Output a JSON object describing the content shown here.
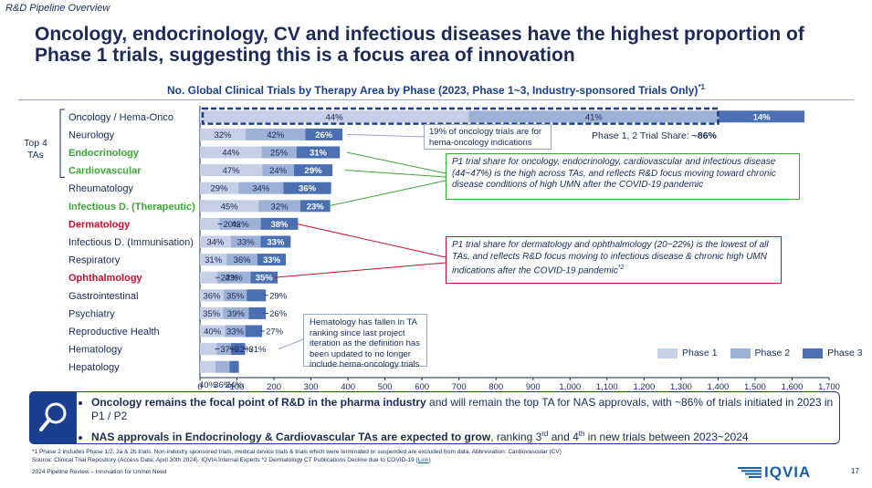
{
  "section_label": "R&D Pipeline Overview",
  "headline": "Oncology, endocrinology, CV and infectious diseases have the highest proportion of Phase 1 trials, suggesting this is a focus area of innovation",
  "chart_title": "No. Global Clinical Trials by Therapy Area by Phase (2023, Phase 1~3, Industry-sponsored Trials Only)",
  "chart_title_sup": "*1",
  "top4_label": "Top 4 TAs",
  "share_note_prefix": "Phase 1, 2 Trial Share: ",
  "share_note_value": "~86%",
  "callouts": {
    "oncology": "19% of oncology trials are for hema-oncology indications",
    "green": "P1 trial share for oncology, endocrinology, cardiovascular and infectious disease (44~47%) is the high across TAs, and reflects R&D focus moving toward chronic disease conditions of high UMN after the COVID-19 pandemic",
    "red": "P1 trial share for dermatology and ophthalmology (20~22%) is the lowest of all TAs, and reflects R&D focus moving to infectious disease & chronic high UMN indications after the COVID-19 pandemic",
    "red_sup": "*2",
    "hematology": "Hematology has fallen in TA ranking since last project iteration as the definition has been updated to no longer include hema-oncology trials"
  },
  "legend": [
    "Phase 1",
    "Phase 2",
    "Phase 3"
  ],
  "colors": {
    "phase1": "#c5cfe6",
    "phase2": "#9db0d6",
    "phase3": "#4a6fb3",
    "navy": "#1b2a59",
    "green": "#3aa935",
    "red": "#c8102e",
    "highlight": "#1b3f8f"
  },
  "chart_data": {
    "type": "bar",
    "orientation": "horizontal",
    "stacked": true,
    "xlim": [
      0,
      1700
    ],
    "xticks": [
      "0",
      "100",
      "200",
      "300",
      "400",
      "500",
      "600",
      "700",
      "800",
      "900",
      "1,000",
      "1,100",
      "1,200",
      "1,300",
      "1,400",
      "1,500",
      "1,600",
      "1,700"
    ],
    "categories": [
      "Oncology / Hema-Onco",
      "Neurology",
      "Endocrinology",
      "Cardiovascular",
      "Rheumatology",
      "Infectious D. (Therapeutic)",
      "Dermatology",
      "Infectious D. (Immunisation)",
      "Respiratory",
      "Ophthalmology",
      "Gastrointestinal",
      "Psychiatry",
      "Reproductive Health",
      "Hematology",
      "Hepatology"
    ],
    "category_colors": [
      "#1b2a59",
      "#1b2a59",
      "#3aa935",
      "#3aa935",
      "#1b2a59",
      "#3aa935",
      "#c8102e",
      "#1b2a59",
      "#1b2a59",
      "#c8102e",
      "#1b2a59",
      "#1b2a59",
      "#1b2a59",
      "#1b2a59",
      "#1b2a59"
    ],
    "category_bold": [
      false,
      false,
      true,
      true,
      false,
      true,
      true,
      false,
      false,
      true,
      false,
      false,
      false,
      false,
      false
    ],
    "totals": [
      1650,
      385,
      378,
      358,
      358,
      352,
      265,
      245,
      232,
      210,
      178,
      178,
      168,
      122,
      105
    ],
    "series": [
      {
        "name": "Phase 1",
        "pct": [
          44,
          32,
          44,
          47,
          29,
          45,
          20,
          34,
          31,
          22,
          36,
          35,
          40,
          37,
          40
        ]
      },
      {
        "name": "Phase 2",
        "pct": [
          41,
          42,
          25,
          24,
          34,
          32,
          42,
          33,
          36,
          43,
          35,
          39,
          33,
          32,
          36
        ]
      },
      {
        "name": "Phase 3",
        "pct": [
          14,
          26,
          31,
          29,
          36,
          23,
          38,
          33,
          33,
          35,
          29,
          26,
          27,
          31,
          24
        ]
      }
    ],
    "labels": [
      [
        "44%",
        "41%",
        "14%"
      ],
      [
        "32%",
        "42%",
        "26%"
      ],
      [
        "44%",
        "25%",
        "31%"
      ],
      [
        "47%",
        "24%",
        "29%"
      ],
      [
        "29%",
        "34%",
        "36%"
      ],
      [
        "45%",
        "32%",
        "23%"
      ],
      [
        "20%",
        "42%",
        "38%"
      ],
      [
        "34%",
        "33%",
        "33%"
      ],
      [
        "31%",
        "36%",
        "33%"
      ],
      [
        "22%",
        "43%",
        "35%"
      ],
      [
        "36%",
        "35%",
        "29%"
      ],
      [
        "35%",
        "39%",
        "26%"
      ],
      [
        "40%",
        "33%",
        "27%"
      ],
      [
        "37%",
        "32%",
        "31%"
      ],
      [
        "40%",
        "36%",
        "24%"
      ]
    ]
  },
  "bullets": [
    {
      "bold": "Oncology remains the focal point of R&D in the pharma industry",
      "rest": " and will remain the top TA for NAS approvals, with ~86% of trials initiated in 2023 in P1 / P2"
    },
    {
      "bold": "NAS approvals in Endocrinology & Cardiovascular TAs are expected to grow",
      "rest1": ", ranking 3",
      "sup1": "rd",
      "rest2": " and 4",
      "sup2": "th",
      "rest3": " in new trials between 2023~2024"
    }
  ],
  "footnote_line1": "*1 Phase 2 includes Phase 1/2, 2a & 2b trials. Non-industry sponsored trials, medical device trials & trials which were terminated or suspended are excluded from data. Abbreviation: Cardiovascular (CV)",
  "footnote_line2": "Source: Clinical Trial Repository (Access Date: April 30th 2024). IQVIA Internal Experts *2 Dermatology CT Publications Decline due to COVID-19 (",
  "footnote_link": "Link",
  "footnote_close": ")",
  "footer_left": "2024 Pipeline Review – Innovation for Unmet Need",
  "logo_text": "IQVIA",
  "page_number": "17"
}
